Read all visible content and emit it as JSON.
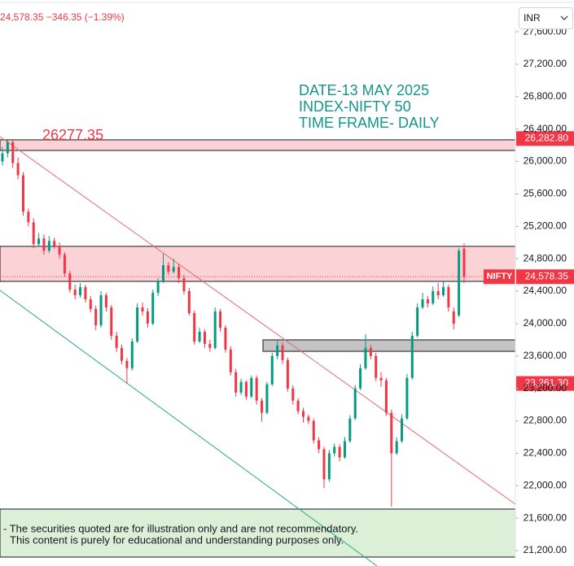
{
  "header": {
    "quote": "24,578.35 −346.35 (−1.39%)",
    "currency": "INR"
  },
  "chart_data": {
    "type": "candlestick",
    "annotations": [
      "DATE-13 MAY 2025",
      "INDEX-NIFTY 50",
      "TIME FRAME- DAILY"
    ],
    "level_note": "26277.35",
    "disclaimer": [
      "- The securities quoted are for illustration only and are not recommendatory.",
      "This content is purely for educational and understanding purposes only."
    ],
    "ylim": [
      21110,
      27641
    ],
    "yticks": [
      {
        "value": 21200,
        "label": "21,200.00"
      },
      {
        "value": 21600,
        "label": "21,600.00"
      },
      {
        "value": 22000,
        "label": "22,000.00"
      },
      {
        "value": 22400,
        "label": "22,400.00"
      },
      {
        "value": 22800,
        "label": "22,800.00"
      },
      {
        "value": 23200,
        "label": "23,200.00"
      },
      {
        "value": 23600,
        "label": "23,600.00"
      },
      {
        "value": 24000,
        "label": "24,000.00"
      },
      {
        "value": 24400,
        "label": "24,400.00"
      },
      {
        "value": 24800,
        "label": "24,800.00"
      },
      {
        "value": 25200,
        "label": "25,200.00"
      },
      {
        "value": 25600,
        "label": "25,600.00"
      },
      {
        "value": 26000,
        "label": "26,000.00"
      },
      {
        "value": 26400,
        "label": "26,400.00"
      },
      {
        "value": 26800,
        "label": "26,800.00"
      },
      {
        "value": 27200,
        "label": "27,200.00"
      },
      {
        "value": 27600,
        "label": "27,600.00"
      }
    ],
    "up_color": "#089981",
    "down_color": "#f23645",
    "zones": [
      {
        "top": 26267,
        "bottom": 26136,
        "color": "#fbd3d6"
      },
      {
        "top": 24953,
        "bottom": 24521,
        "color": "#fbd3d6"
      },
      {
        "top": 23799,
        "bottom": 23658,
        "color": "#c4c4c4"
      },
      {
        "top": 21712,
        "bottom": 21120,
        "color": "#dcefd7"
      }
    ],
    "price_labels": [
      {
        "value": 26282.8,
        "label": "26,282.80",
        "color": "#f23645"
      },
      {
        "name": "NIFTY",
        "value": 24578.35,
        "label": "24,578.35",
        "color": "#f23645"
      },
      {
        "value": 23261.3,
        "label": "23,261.30",
        "color": "#f23645"
      }
    ],
    "ohlc": [
      [
        26000,
        26180,
        25950,
        26100
      ],
      [
        26100,
        26277,
        26050,
        26240
      ],
      [
        26240,
        26260,
        25920,
        25980
      ],
      [
        25980,
        26050,
        25780,
        25830
      ],
      [
        25830,
        25870,
        25330,
        25380
      ],
      [
        25380,
        25420,
        25200,
        25250
      ],
      [
        25250,
        25300,
        24930,
        24980
      ],
      [
        24980,
        25120,
        24950,
        25050
      ],
      [
        25050,
        25100,
        24850,
        24900
      ],
      [
        24900,
        25080,
        24870,
        25020
      ],
      [
        25020,
        25060,
        24920,
        24960
      ],
      [
        24960,
        25000,
        24800,
        24850
      ],
      [
        24850,
        24880,
        24580,
        24620
      ],
      [
        24620,
        24650,
        24380,
        24420
      ],
      [
        24420,
        24480,
        24300,
        24350
      ],
      [
        24350,
        24500,
        24320,
        24450
      ],
      [
        24450,
        24480,
        24260,
        24300
      ],
      [
        24300,
        24340,
        24140,
        24180
      ],
      [
        24180,
        24220,
        23920,
        23980
      ],
      [
        23980,
        24400,
        23950,
        24350
      ],
      [
        24350,
        24380,
        24150,
        24200
      ],
      [
        24200,
        24230,
        23800,
        23850
      ],
      [
        23850,
        23900,
        23650,
        23700
      ],
      [
        23700,
        23740,
        23500,
        23540
      ],
      [
        23540,
        23580,
        23260,
        23450
      ],
      [
        23450,
        23820,
        23420,
        23780
      ],
      [
        23780,
        24250,
        23760,
        24200
      ],
      [
        24200,
        24260,
        24100,
        24150
      ],
      [
        24150,
        24190,
        23950,
        24000
      ],
      [
        24000,
        24420,
        23980,
        24380
      ],
      [
        24380,
        24560,
        24340,
        24520
      ],
      [
        24520,
        24860,
        24500,
        24720
      ],
      [
        24720,
        24760,
        24600,
        24640
      ],
      [
        24640,
        24800,
        24620,
        24700
      ],
      [
        24700,
        24740,
        24500,
        24560
      ],
      [
        24560,
        24600,
        24360,
        24400
      ],
      [
        24400,
        24440,
        24100,
        24130
      ],
      [
        24130,
        24160,
        23740,
        23780
      ],
      [
        23780,
        23950,
        23760,
        23900
      ],
      [
        23900,
        23930,
        23700,
        23750
      ],
      [
        23750,
        23800,
        23650,
        23700
      ],
      [
        23700,
        24200,
        23680,
        24150
      ],
      [
        24150,
        24180,
        23900,
        23950
      ],
      [
        23950,
        23980,
        23640,
        23680
      ],
      [
        23680,
        23720,
        23360,
        23400
      ],
      [
        23400,
        23440,
        23100,
        23150
      ],
      [
        23150,
        23320,
        23120,
        23280
      ],
      [
        23280,
        23300,
        23060,
        23100
      ],
      [
        23100,
        23360,
        23080,
        23330
      ],
      [
        23330,
        23360,
        23000,
        23050
      ],
      [
        23050,
        23080,
        22790,
        22900
      ],
      [
        22900,
        23280,
        22880,
        23250
      ],
      [
        23250,
        23640,
        23230,
        23600
      ],
      [
        23600,
        23800,
        23560,
        23730
      ],
      [
        23730,
        23770,
        23500,
        23550
      ],
      [
        23550,
        23580,
        23160,
        23200
      ],
      [
        23200,
        23240,
        23000,
        23050
      ],
      [
        23050,
        23080,
        22880,
        22920
      ],
      [
        22920,
        22960,
        22780,
        22850
      ],
      [
        22850,
        22880,
        22760,
        22800
      ],
      [
        22800,
        22830,
        22520,
        22560
      ],
      [
        22560,
        22600,
        22400,
        22450
      ],
      [
        22450,
        22480,
        21970,
        22080
      ],
      [
        22080,
        22440,
        22050,
        22400
      ],
      [
        22400,
        22520,
        22360,
        22480
      ],
      [
        22480,
        22510,
        22300,
        22350
      ],
      [
        22350,
        22600,
        22330,
        22550
      ],
      [
        22550,
        22870,
        22530,
        22830
      ],
      [
        22830,
        23240,
        22810,
        23200
      ],
      [
        23200,
        23500,
        23180,
        23450
      ],
      [
        23450,
        23870,
        23430,
        23700
      ],
      [
        23700,
        23740,
        23560,
        23600
      ],
      [
        23600,
        23640,
        23290,
        23330
      ],
      [
        23330,
        23400,
        23220,
        23300
      ],
      [
        23300,
        23330,
        22860,
        22900
      ],
      [
        22900,
        22940,
        21743,
        22400
      ],
      [
        22400,
        22600,
        22380,
        22550
      ],
      [
        22550,
        22880,
        22530,
        22830
      ],
      [
        22830,
        23380,
        22810,
        23330
      ],
      [
        23330,
        23900,
        23310,
        23850
      ],
      [
        23850,
        24250,
        23830,
        24200
      ],
      [
        24200,
        24380,
        24180,
        24300
      ],
      [
        24300,
        24340,
        24200,
        24250
      ],
      [
        24250,
        24460,
        24230,
        24400
      ],
      [
        24400,
        24500,
        24300,
        24350
      ],
      [
        24350,
        24520,
        24330,
        24450
      ],
      [
        24450,
        24480,
        24150,
        24200
      ],
      [
        24150,
        24200,
        23930,
        24000
      ],
      [
        24100,
        24930,
        24080,
        24900
      ],
      [
        24925,
        24990,
        24500,
        24578.35
      ]
    ]
  }
}
